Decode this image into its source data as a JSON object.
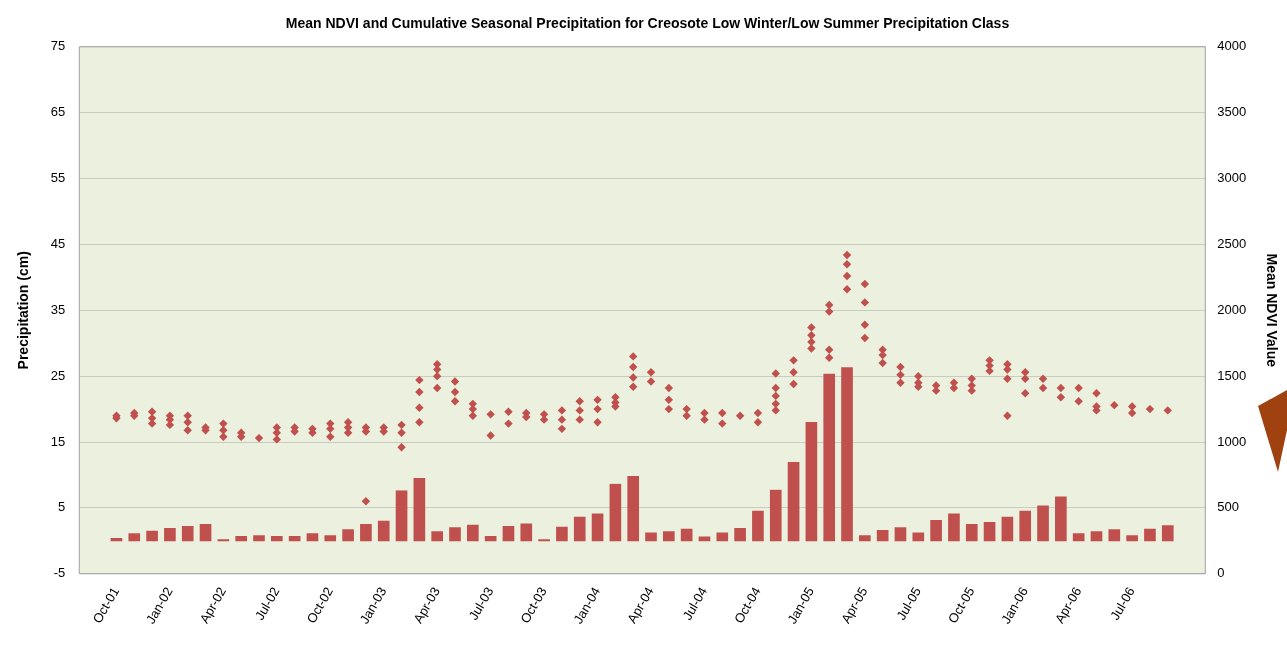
{
  "chart_data": {
    "type": "bar",
    "title": "Mean NDVI and Cumulative Seasonal Precipitation for Creosote Low Winter/Low Summer Precipitation Class",
    "ylabel": "Precipitation (cm)",
    "y2label": "Mean NDVI Value",
    "x": [
      "2001-10",
      "2001-11",
      "2001-12",
      "2002-01",
      "2002-02",
      "2002-03",
      "2002-04",
      "2002-05",
      "2002-06",
      "2002-07",
      "2002-08",
      "2002-09",
      "2002-10",
      "2002-11",
      "2002-12",
      "2003-01",
      "2003-02",
      "2003-03",
      "2003-04",
      "2003-05",
      "2003-06",
      "2003-07",
      "2003-08",
      "2003-09",
      "2003-10",
      "2003-11",
      "2003-12",
      "2004-01",
      "2004-02",
      "2004-03",
      "2004-04",
      "2004-05",
      "2004-06",
      "2004-07",
      "2004-08",
      "2004-09",
      "2004-10",
      "2004-11",
      "2004-12",
      "2005-01",
      "2005-02",
      "2005-03",
      "2005-04",
      "2005-05",
      "2005-06",
      "2005-07",
      "2005-08",
      "2005-09",
      "2005-10",
      "2005-11",
      "2005-12",
      "2006-01",
      "2006-02",
      "2006-03",
      "2006-04",
      "2006-05",
      "2006-06",
      "2006-07",
      "2006-08",
      "2006-09"
    ],
    "series": [
      {
        "color": "#c0504d",
        "values": [
          0.4,
          1.1,
          1.5,
          1.9,
          2.2,
          2.5,
          0.2,
          0.7,
          0.8,
          0.7,
          0.7,
          1.1,
          0.8,
          1.7,
          2.5,
          3.0,
          7.6,
          9.5,
          1.4,
          2.0,
          2.4,
          0.7,
          2.2,
          2.6,
          0.2,
          2.1,
          3.6,
          4.1,
          8.6,
          9.8,
          1.2,
          1.4,
          1.8,
          0.6,
          1.2,
          1.9,
          4.5,
          7.7,
          11.9,
          18.0,
          25.3,
          26.3,
          0.8,
          1.6,
          2.0,
          1.2,
          3.1,
          4.1,
          2.5,
          2.8,
          3.6,
          4.5,
          5.3,
          6.7,
          1.1,
          1.4,
          1.7,
          0.8,
          1.8,
          2.3
        ]
      },
      {
        "type": "scatter",
        "axis": "y2",
        "marker": "diamond",
        "color": "#c0504d",
        "x": [
          "2001-10",
          "2001-10",
          "2001-11",
          "2001-11",
          "2001-12",
          "2001-12",
          "2001-12",
          "2002-01",
          "2002-01",
          "2002-01",
          "2002-02",
          "2002-02",
          "2002-02",
          "2002-03",
          "2002-03",
          "2002-04",
          "2002-04",
          "2002-04",
          "2002-05",
          "2002-05",
          "2002-06",
          "2002-07",
          "2002-07",
          "2002-07",
          "2002-08",
          "2002-08",
          "2002-09",
          "2002-09",
          "2002-10",
          "2002-10",
          "2002-10",
          "2002-11",
          "2002-11",
          "2002-11",
          "2002-12",
          "2002-12",
          "2002-12",
          "2003-01",
          "2003-01",
          "2003-02",
          "2003-02",
          "2003-02",
          "2003-03",
          "2003-03",
          "2003-03",
          "2003-03",
          "2003-04",
          "2003-04",
          "2003-04",
          "2003-04",
          "2003-05",
          "2003-05",
          "2003-05",
          "2003-06",
          "2003-06",
          "2003-06",
          "2003-07",
          "2003-07",
          "2003-08",
          "2003-08",
          "2003-09",
          "2003-09",
          "2003-10",
          "2003-10",
          "2003-11",
          "2003-11",
          "2003-11",
          "2003-12",
          "2003-12",
          "2003-12",
          "2004-01",
          "2004-01",
          "2004-01",
          "2004-02",
          "2004-02",
          "2004-02",
          "2004-03",
          "2004-03",
          "2004-03",
          "2004-03",
          "2004-04",
          "2004-04",
          "2004-05",
          "2004-05",
          "2004-05",
          "2004-06",
          "2004-06",
          "2004-07",
          "2004-07",
          "2004-08",
          "2004-08",
          "2004-09",
          "2004-10",
          "2004-10",
          "2004-11",
          "2004-11",
          "2004-11",
          "2004-11",
          "2004-11",
          "2004-12",
          "2004-12",
          "2004-12",
          "2005-01",
          "2005-01",
          "2005-01",
          "2005-01",
          "2005-02",
          "2005-02",
          "2005-02",
          "2005-02",
          "2005-03",
          "2005-03",
          "2005-03",
          "2005-03",
          "2005-04",
          "2005-04",
          "2005-04",
          "2005-04",
          "2005-05",
          "2005-05",
          "2005-05",
          "2005-06",
          "2005-06",
          "2005-06",
          "2005-07",
          "2005-07",
          "2005-07",
          "2005-08",
          "2005-08",
          "2005-09",
          "2005-09",
          "2005-10",
          "2005-10",
          "2005-10",
          "2005-11",
          "2005-11",
          "2005-11",
          "2005-12",
          "2005-12",
          "2005-12",
          "2005-12",
          "2006-01",
          "2006-01",
          "2006-01",
          "2006-02",
          "2006-02",
          "2006-03",
          "2006-03",
          "2006-04",
          "2006-04",
          "2006-05",
          "2006-05",
          "2006-05",
          "2006-06",
          "2006-07",
          "2006-07",
          "2006-08",
          "2006-09"
        ],
        "values": [
          1200,
          1180,
          1220,
          1200,
          1230,
          1180,
          1140,
          1200,
          1170,
          1130,
          1200,
          1150,
          1090,
          1110,
          1090,
          1140,
          1090,
          1040,
          1070,
          1040,
          1030,
          1110,
          1070,
          1020,
          1110,
          1080,
          1100,
          1070,
          1140,
          1100,
          1040,
          1150,
          1110,
          1070,
          1110,
          1080,
          550,
          1110,
          1080,
          1130,
          1070,
          960,
          1470,
          1380,
          1260,
          1150,
          1590,
          1550,
          1500,
          1410,
          1460,
          1380,
          1310,
          1290,
          1250,
          1200,
          1210,
          1050,
          1230,
          1140,
          1220,
          1190,
          1210,
          1170,
          1240,
          1170,
          1100,
          1310,
          1240,
          1170,
          1320,
          1250,
          1150,
          1340,
          1300,
          1270,
          1650,
          1570,
          1490,
          1420,
          1530,
          1460,
          1410,
          1320,
          1250,
          1250,
          1200,
          1220,
          1170,
          1220,
          1140,
          1200,
          1220,
          1150,
          1520,
          1410,
          1350,
          1290,
          1240,
          1620,
          1530,
          1440,
          1870,
          1810,
          1760,
          1710,
          2040,
          1990,
          1700,
          1640,
          2420,
          2350,
          2260,
          2160,
          2200,
          2060,
          1890,
          1790,
          1700,
          1660,
          1600,
          1570,
          1510,
          1450,
          1500,
          1450,
          1420,
          1430,
          1390,
          1450,
          1410,
          1480,
          1430,
          1390,
          1620,
          1580,
          1540,
          1590,
          1550,
          1480,
          1200,
          1530,
          1480,
          1370,
          1480,
          1410,
          1410,
          1340,
          1410,
          1310,
          1370,
          1270,
          1240,
          1280,
          1270,
          1220,
          1250,
          1240
        ]
      }
    ],
    "xlim": [
      "2001-09-16",
      "2006-09-17"
    ],
    "xticks": [
      {
        "value": "2001-10",
        "label": "Oct-01"
      },
      {
        "value": "2002-01",
        "label": "Jan-02"
      },
      {
        "value": "2002-04",
        "label": "Apr-02"
      },
      {
        "value": "2002-07",
        "label": "Jul-02"
      },
      {
        "value": "2002-10",
        "label": "Oct-02"
      },
      {
        "value": "2003-01",
        "label": "Jan-03"
      },
      {
        "value": "2003-04",
        "label": "Apr-03"
      },
      {
        "value": "2003-07",
        "label": "Jul-03"
      },
      {
        "value": "2003-10",
        "label": "Oct-03"
      },
      {
        "value": "2004-01",
        "label": "Jan-04"
      },
      {
        "value": "2004-04",
        "label": "Apr-04"
      },
      {
        "value": "2004-07",
        "label": "Jul-04"
      },
      {
        "value": "2004-10",
        "label": "Oct-04"
      },
      {
        "value": "2005-01",
        "label": "Jan-05"
      },
      {
        "value": "2005-04",
        "label": "Apr-05"
      },
      {
        "value": "2005-07",
        "label": "Jul-05"
      },
      {
        "value": "2005-10",
        "label": "Oct-05"
      },
      {
        "value": "2006-01",
        "label": "Jan-06"
      },
      {
        "value": "2006-04",
        "label": "Apr-06"
      },
      {
        "value": "2006-07",
        "label": "Jul-06"
      }
    ],
    "ylim": [
      -5,
      75
    ],
    "yticks": [
      -5,
      5,
      15,
      25,
      35,
      45,
      55,
      65,
      75
    ],
    "y2lim": [
      0,
      4000
    ],
    "y2ticks": [
      0,
      500,
      1000,
      1500,
      2000,
      2500,
      3000,
      3500,
      4000
    ],
    "grid": "y"
  }
}
